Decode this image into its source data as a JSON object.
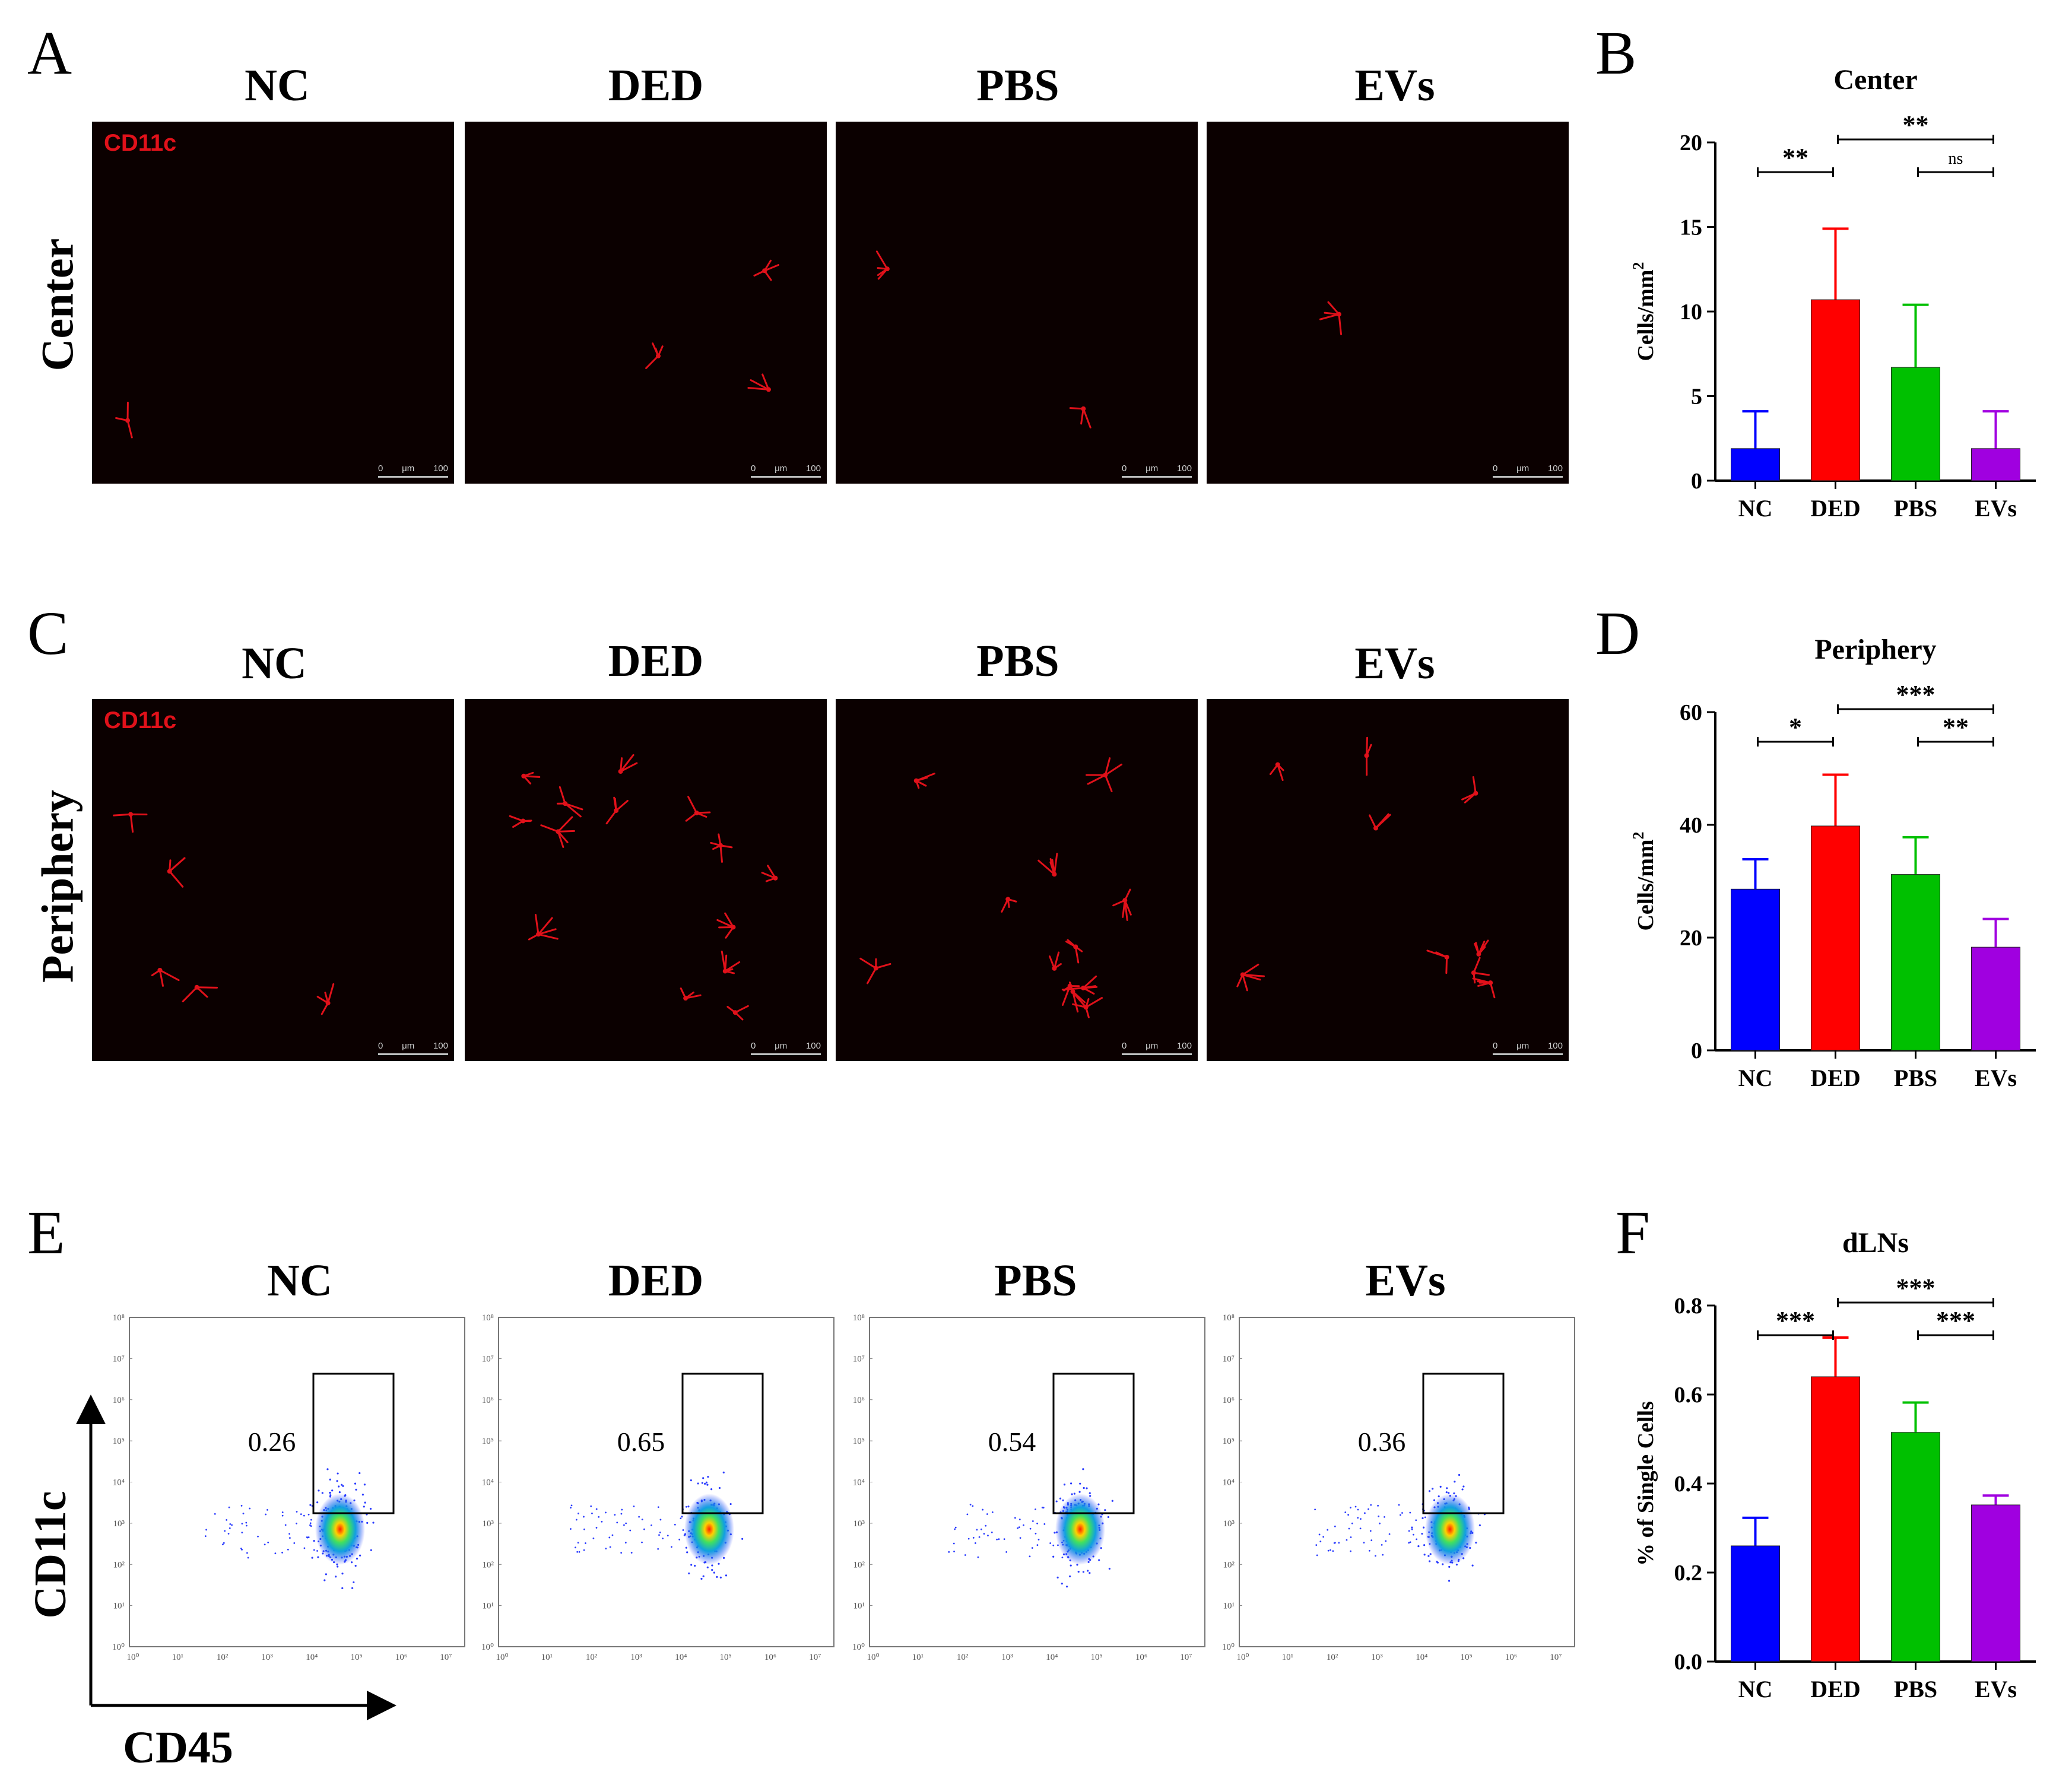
{
  "panel_letters": [
    "A",
    "B",
    "C",
    "D",
    "E",
    "F"
  ],
  "groups": [
    "NC",
    "DED",
    "PBS",
    "EVs"
  ],
  "row_labels": {
    "center": "Center",
    "periphery": "Periphery"
  },
  "stain_label": "CD11c",
  "scale_bar": {
    "start": "0",
    "unit": "μm",
    "end": "100"
  },
  "flow": {
    "y_axis_label": "CD11c",
    "x_axis_label": "CD45",
    "tick_labels": [
      "10⁰",
      "10¹",
      "10²",
      "10³",
      "10⁴",
      "10⁵",
      "10⁶",
      "10⁷",
      "10⁸"
    ],
    "gate_percentages": [
      "0.26",
      "0.65",
      "0.54",
      "0.36"
    ]
  },
  "colors": {
    "NC": "#0000ff",
    "DED": "#ff0000",
    "PBS": "#00c000",
    "EVs": "#a000e0",
    "stain": "#e0111a"
  },
  "chart_data": [
    {
      "panel": "B",
      "type": "bar",
      "title": "Center",
      "ylabel": "Cells/mm",
      "ylabel_superscript": "2",
      "categories": [
        "NC",
        "DED",
        "PBS",
        "EVs"
      ],
      "values": [
        1.9,
        10.7,
        6.7,
        1.9
      ],
      "errors": [
        2.2,
        4.2,
        3.7,
        2.2
      ],
      "ylim": [
        0,
        20
      ],
      "yticks": [
        "0",
        "5",
        "10",
        "15",
        "20"
      ],
      "significance": [
        {
          "from": 0,
          "to": 1,
          "label": "**"
        },
        {
          "from": 1,
          "to": 3,
          "label": "**"
        },
        {
          "from": 2,
          "to": 3,
          "label": "ns"
        }
      ]
    },
    {
      "panel": "D",
      "type": "bar",
      "title": "Periphery",
      "ylabel": "Cells/mm",
      "ylabel_superscript": "2",
      "categories": [
        "NC",
        "DED",
        "PBS",
        "EVs"
      ],
      "values": [
        28.6,
        39.8,
        31.2,
        18.3
      ],
      "errors": [
        5.3,
        9.1,
        6.6,
        5.0
      ],
      "ylim": [
        0,
        60
      ],
      "yticks": [
        "0",
        "20",
        "40",
        "60"
      ],
      "significance": [
        {
          "from": 0,
          "to": 1,
          "label": "*"
        },
        {
          "from": 1,
          "to": 3,
          "label": "***"
        },
        {
          "from": 2,
          "to": 3,
          "label": "**"
        }
      ]
    },
    {
      "panel": "F",
      "type": "bar",
      "title": "dLNs",
      "ylabel": "% of Single Cells",
      "ylabel_superscript": "",
      "categories": [
        "NC",
        "DED",
        "PBS",
        "EVs"
      ],
      "values": [
        0.26,
        0.64,
        0.515,
        0.352
      ],
      "errors": [
        0.063,
        0.088,
        0.067,
        0.021
      ],
      "ylim": [
        0,
        0.8
      ],
      "yticks": [
        "0.0",
        "0.2",
        "0.4",
        "0.6",
        "0.8"
      ],
      "significance": [
        {
          "from": 0,
          "to": 1,
          "label": "***"
        },
        {
          "from": 1,
          "to": 3,
          "label": "***"
        },
        {
          "from": 2,
          "to": 3,
          "label": "***"
        }
      ]
    }
  ]
}
